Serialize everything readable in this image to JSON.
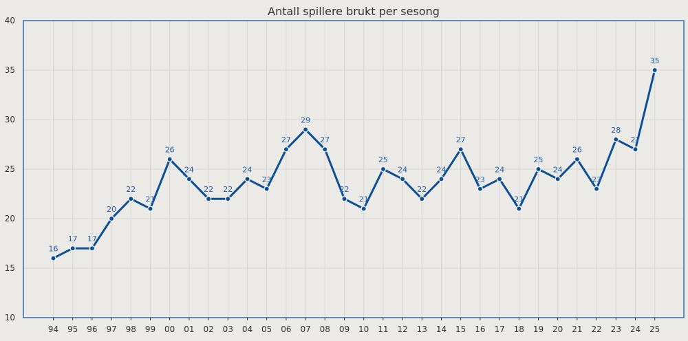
{
  "chart_data": {
    "type": "line",
    "title": "Antall spillere brukt per sesong",
    "xlabel": "",
    "ylabel": "",
    "categories": [
      "94",
      "95",
      "96",
      "97",
      "98",
      "99",
      "00",
      "01",
      "02",
      "03",
      "04",
      "05",
      "06",
      "07",
      "08",
      "09",
      "10",
      "11",
      "12",
      "13",
      "14",
      "15",
      "16",
      "17",
      "18",
      "19",
      "20",
      "21",
      "22",
      "23",
      "24",
      "25"
    ],
    "series": [
      {
        "values": [
          16,
          17,
          17,
          20,
          22,
          21,
          26,
          24,
          22,
          22,
          24,
          23,
          27,
          29,
          27,
          22,
          21,
          25,
          24,
          22,
          24,
          27,
          23,
          24,
          21,
          25,
          24,
          26,
          23,
          28,
          27,
          35
        ],
        "color": "#0d4f97"
      }
    ],
    "ylim": [
      10,
      40
    ],
    "yticks": [
      10,
      15,
      20,
      25,
      30,
      35,
      40
    ],
    "grid": true,
    "legend": "none",
    "data_labels": true
  },
  "colors": {
    "background": "#eceae6",
    "grid": "#d9d6d1",
    "frame": "#2f6db0",
    "line": "#0d4f97",
    "label": "#1f5fa8",
    "text": "#333333"
  }
}
